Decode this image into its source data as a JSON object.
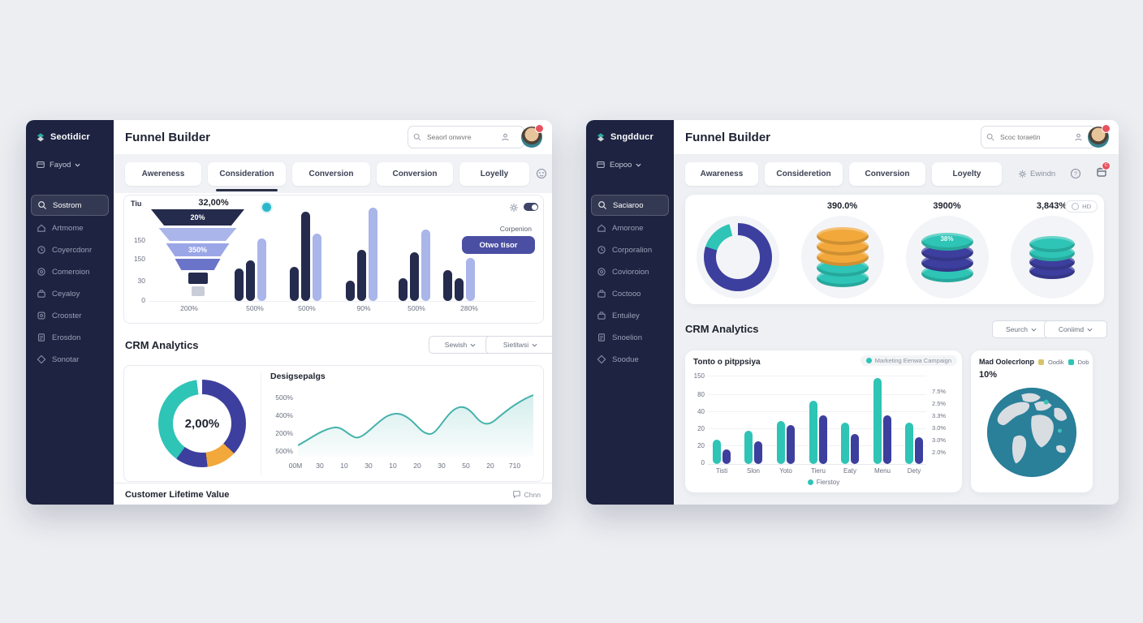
{
  "left_app": {
    "sidebar": {
      "logo_text": "Seotidicr",
      "workspace_label": "Fayod",
      "items": [
        {
          "label": "Sostrom",
          "icon": "search",
          "active": true
        },
        {
          "label": "Artmome",
          "icon": "home"
        },
        {
          "label": "Coyercdonr",
          "icon": "clock"
        },
        {
          "label": "Comeroion",
          "icon": "target"
        },
        {
          "label": "Ceyaloy",
          "icon": "briefcase"
        },
        {
          "label": "Crooster",
          "icon": "badge"
        },
        {
          "label": "Erosdon",
          "icon": "document"
        },
        {
          "label": "Sonotar",
          "icon": "diamond"
        }
      ]
    },
    "header": {
      "title": "Funnel Builder",
      "search_placeholder": "Seaorl onwvre"
    },
    "tabs": [
      {
        "label": "Awereness"
      },
      {
        "label": "Consideration",
        "active": true
      },
      {
        "label": "Conversion"
      },
      {
        "label": "Conversion"
      },
      {
        "label": "Loyelly"
      }
    ],
    "crm": {
      "title": "CRM Analytics",
      "filter1": "Sewish",
      "filter2": "Sietitwsi"
    },
    "footer": {
      "label": "Customer Lifetime Value",
      "action_label": "Chnn"
    }
  },
  "right_app": {
    "sidebar": {
      "logo_text": "Sngdducr",
      "workspace_label": "Eopoo",
      "items": [
        {
          "label": "Saciaroo",
          "icon": "search",
          "active": true
        },
        {
          "label": "Amorone",
          "icon": "home"
        },
        {
          "label": "Corporalion",
          "icon": "clock"
        },
        {
          "label": "Covioroion",
          "icon": "target"
        },
        {
          "label": "Coctooo",
          "icon": "briefcase"
        },
        {
          "label": "Entuiley",
          "icon": "briefcase"
        },
        {
          "label": "Snoelion",
          "icon": "document"
        },
        {
          "label": "Soodue",
          "icon": "diamond"
        }
      ]
    },
    "header": {
      "title": "Funnel Builder",
      "search_placeholder": "Scoc toraetin"
    },
    "tabs": [
      {
        "label": "Awareness"
      },
      {
        "label": "Consideretion",
        "active": true
      },
      {
        "label": "Conversion"
      },
      {
        "label": "Loyelty"
      }
    ],
    "toolbar": {
      "settings_label": "Ewindn",
      "hd_label": "HD",
      "notif_badge": "C"
    },
    "crm": {
      "title": "CRM Analytics",
      "filter1": "Seurch",
      "filter2": "Coniimd"
    }
  },
  "chart_data": [
    {
      "id": "left-funnel-bars",
      "type": "funnel",
      "headline_value": "32,00%",
      "corner_label": "Tiu",
      "funnel_stages": [
        {
          "label": "20%",
          "value": 100,
          "color": "#252b4d"
        },
        {
          "label": "",
          "value": 84,
          "color": "#aab5ea"
        },
        {
          "label": "350%",
          "value": 68,
          "color": "#9aa6e6"
        },
        {
          "label": "",
          "value": 48,
          "color": "#6a74c9"
        },
        {
          "label": "",
          "value": 22,
          "color": "#252b4d"
        },
        {
          "label": "",
          "value": 14,
          "color": "#c9cdd8"
        }
      ],
      "y_ticks": [
        "150",
        "150",
        "30",
        "0"
      ],
      "x_ticks": [
        "200%",
        "500%",
        "500%",
        "90%",
        "500%",
        "280%"
      ],
      "bar_groups": [
        {
          "x_tick": "500%",
          "values": [
            40,
            50,
            77
          ]
        },
        {
          "x_tick": "500%",
          "values": [
            42,
            110,
            83
          ]
        },
        {
          "x_tick": "90%",
          "values": [
            25,
            63,
            115
          ]
        },
        {
          "x_tick": "500%",
          "values": [
            28,
            60,
            88
          ]
        },
        {
          "x_tick": "280%",
          "values": [
            38,
            28,
            53
          ]
        }
      ],
      "bar_colors": [
        "#252b4d",
        "#252b4d",
        "#aab5ea"
      ],
      "legend_label": "Corpenion",
      "legend_button": "Otwo tisor"
    },
    {
      "id": "left-donut",
      "type": "pie",
      "center_label": "2,00%",
      "slices": [
        {
          "name": "primary",
          "value": 37,
          "color": "#3d3f9e"
        },
        {
          "name": "accent",
          "value": 11,
          "color": "#f2a83b"
        },
        {
          "name": "primary-2",
          "value": 12,
          "color": "#3d3f9e"
        },
        {
          "name": "teal",
          "value": 38,
          "color": "#2ec4b6"
        },
        {
          "name": "gap",
          "value": 2,
          "color": "#ffffff"
        }
      ]
    },
    {
      "id": "left-line",
      "type": "area",
      "title": "Desigsepalgs",
      "y_ticks": [
        "500%",
        "400%",
        "200%",
        "500%"
      ],
      "x_ticks": [
        "00M",
        "30",
        "10",
        "30",
        "10",
        "20",
        "30",
        "50",
        "20",
        "710"
      ],
      "points": [
        18,
        30,
        38,
        34,
        28,
        52,
        60,
        48,
        36,
        58,
        72,
        55,
        68,
        80,
        86
      ],
      "line_color": "#45b2ab"
    },
    {
      "id": "right-kpis",
      "type": "kpi",
      "items": [
        {
          "kind": "donut",
          "label": "",
          "slices": [
            {
              "name": "primary",
              "value": 80,
              "color": "#3d3f9e"
            },
            {
              "name": "teal",
              "value": 16,
              "color": "#2ec4b6"
            },
            {
              "name": "gap",
              "value": 4,
              "color": "#f3f4f7"
            }
          ]
        },
        {
          "kind": "coins",
          "label": "390.0%",
          "coin_colors": [
            "#f2a83b",
            "#f2a83b",
            "#f2a83b",
            "#2ec4b6",
            "#2ec4b6"
          ]
        },
        {
          "kind": "coins",
          "label": "3900%",
          "badge": "38%",
          "coin_colors": [
            "#2ec4b6",
            "#3d3f9e",
            "#3d3f9e",
            "#2ec4b6"
          ]
        },
        {
          "kind": "coins",
          "label": "3,843%",
          "coin_colors": [
            "#2ec4b6",
            "#2ec4b6",
            "#3d3f9e",
            "#3d3f9e"
          ]
        }
      ]
    },
    {
      "id": "right-bars",
      "type": "bar",
      "title": "Tonto o pitppsiya",
      "legend_top": "Marketing Eenwa Campaign",
      "legend_bottom": "Fierstoy",
      "categories": [
        "Tisti",
        "Slon",
        "Yoto",
        "Tieru",
        "Eaty",
        "Menu",
        "Dety"
      ],
      "series": [
        {
          "name": "Fierstoy",
          "color": "#2ec4b6",
          "values": [
            26,
            36,
            46,
            68,
            44,
            92,
            44
          ]
        },
        {
          "name": "Secondary",
          "color": "#3d3f9e",
          "values": [
            16,
            24,
            42,
            52,
            32,
            52,
            29
          ]
        }
      ],
      "y_ticks_left": [
        "150",
        "80",
        "40",
        "20",
        "20",
        "0"
      ],
      "y_ticks_right": [
        "7.5%",
        "2.5%",
        "3.3%",
        "3.0%",
        "3.0%",
        "2.0%"
      ]
    },
    {
      "id": "right-globe",
      "type": "map",
      "title": "Mad Oolecrlonp",
      "value": "10%",
      "legend": [
        {
          "label": "Oodik",
          "color": "#d9c36a"
        },
        {
          "label": "Dob",
          "color": "#2ec4b6"
        }
      ]
    }
  ]
}
